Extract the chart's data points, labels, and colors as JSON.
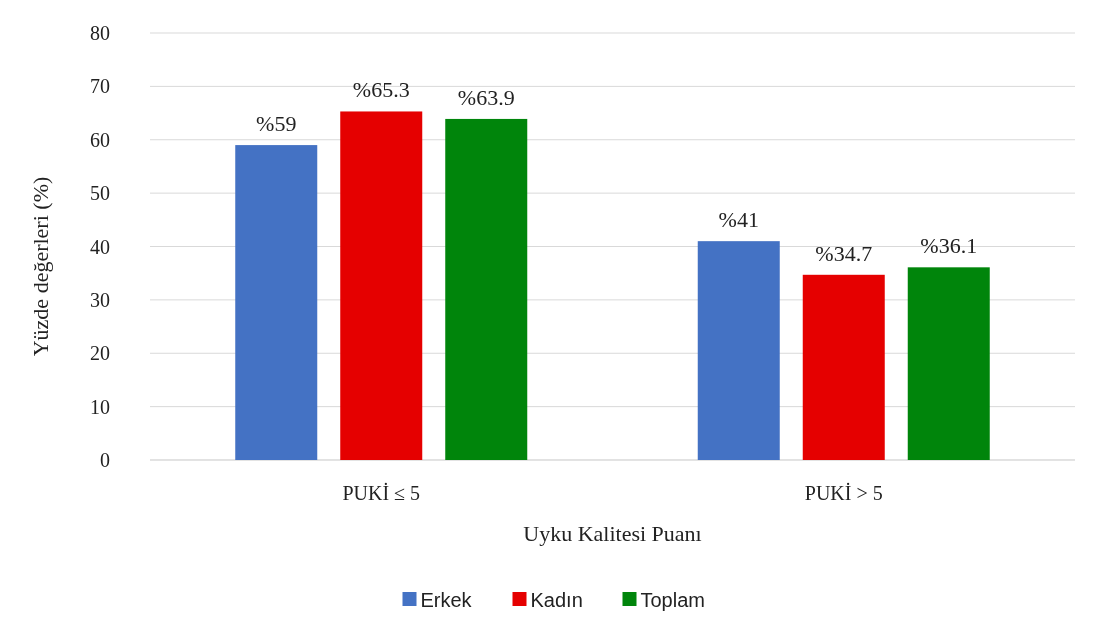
{
  "chart_data": {
    "type": "bar",
    "xlabel": "Uyku Kalitesi Puanı",
    "ylabel": "Yüzde değerleri (%)",
    "categories": [
      "PUKİ ≤ 5",
      "PUKİ > 5"
    ],
    "series": [
      {
        "name": "Erkek",
        "color": "#4472c4",
        "values": [
          59,
          41
        ],
        "value_labels": [
          "%59",
          "%41"
        ]
      },
      {
        "name": "Kadın",
        "color": "#e50000",
        "values": [
          65.3,
          34.7
        ],
        "value_labels": [
          "%65.3",
          "%34.7"
        ]
      },
      {
        "name": "Toplam",
        "color": "#00850b",
        "values": [
          63.9,
          36.1
        ],
        "value_labels": [
          "%63.9",
          "%36.1"
        ]
      }
    ],
    "ylim": [
      0,
      80
    ],
    "yticks": [
      0,
      10,
      20,
      30,
      40,
      50,
      60,
      70,
      80
    ],
    "grid": "y",
    "legend": "bottom"
  }
}
